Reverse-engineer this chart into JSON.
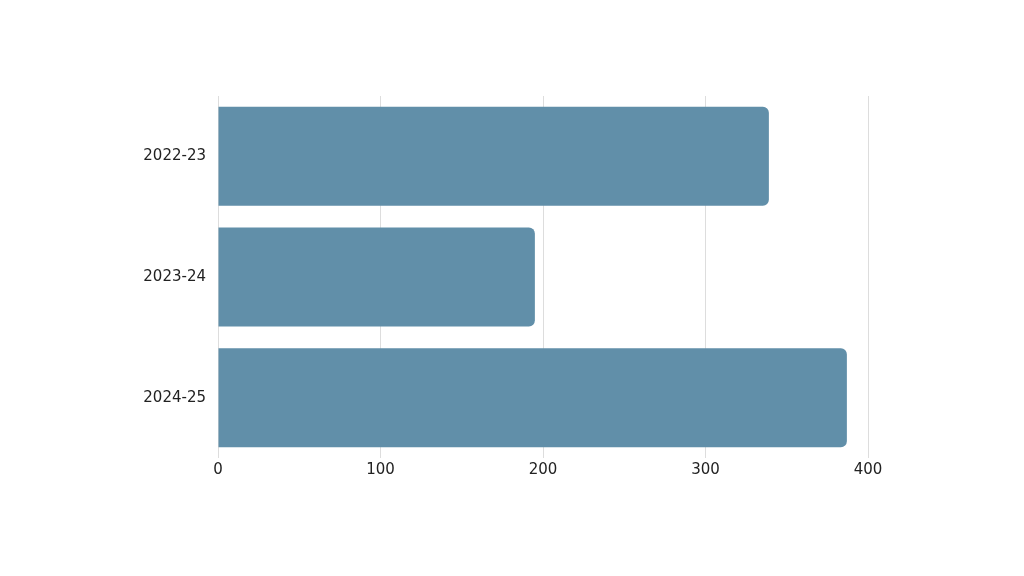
{
  "chart_data": {
    "type": "bar",
    "orientation": "horizontal",
    "categories": [
      "2022-23",
      "2023-24",
      "2024-25"
    ],
    "values": [
      339,
      195,
      387
    ],
    "color": "#618fa9",
    "xlim": [
      0,
      400
    ],
    "xticks": [
      0,
      100,
      200,
      300,
      400
    ],
    "grid": "x",
    "legend": false
  }
}
